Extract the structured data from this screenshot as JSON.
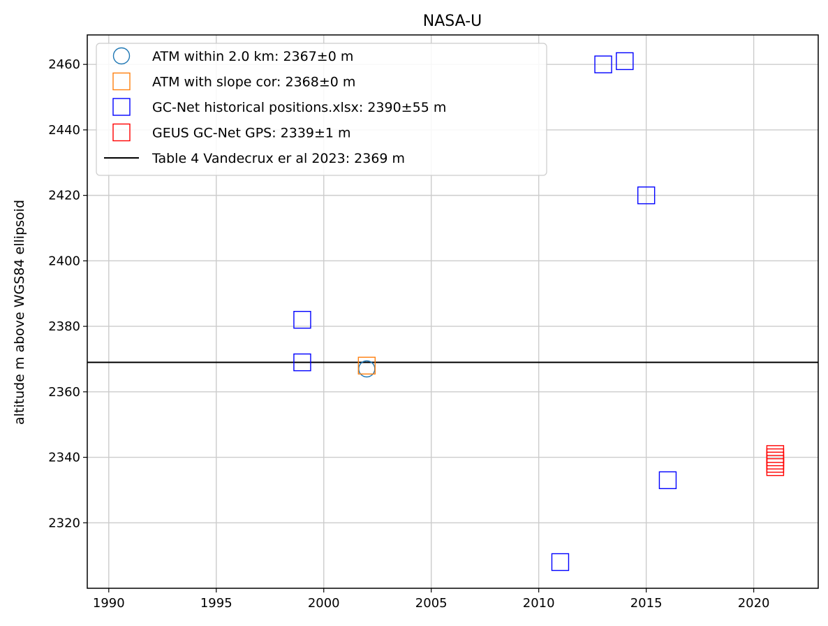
{
  "chart_data": {
    "type": "scatter",
    "title": "NASA-U",
    "xlabel": "",
    "ylabel": "altitude m above WGS84 ellipsoid",
    "xlim": [
      1989,
      2023
    ],
    "ylim": [
      2300,
      2469
    ],
    "xticks": [
      1990,
      1995,
      2000,
      2005,
      2010,
      2015,
      2020
    ],
    "yticks": [
      2320,
      2340,
      2360,
      2380,
      2400,
      2420,
      2440,
      2460
    ],
    "grid": true,
    "legend_position": "upper-left",
    "series": [
      {
        "name": "ATM within 2.0 km: 2367±0 m",
        "marker": "circle",
        "color": "#1f77b4",
        "points": [
          [
            2002,
            2367
          ]
        ]
      },
      {
        "name": "ATM with slope cor: 2368±0 m",
        "marker": "square",
        "color": "#ff7f0e",
        "points": [
          [
            2002,
            2368
          ]
        ]
      },
      {
        "name": "GC-Net historical positions.xlsx: 2390±55 m",
        "marker": "square",
        "color": "#0000ff",
        "points": [
          [
            1999,
            2382
          ],
          [
            1999,
            2369
          ],
          [
            2011,
            2308
          ],
          [
            2013,
            2460
          ],
          [
            2014,
            2461
          ],
          [
            2015,
            2420
          ],
          [
            2016,
            2333
          ]
        ]
      },
      {
        "name": "GEUS GC-Net GPS: 2339±1 m",
        "marker": "square",
        "color": "#ff0000",
        "points": [
          [
            2021,
            2337
          ],
          [
            2021,
            2338
          ],
          [
            2021,
            2339
          ],
          [
            2021,
            2340
          ],
          [
            2021,
            2341
          ]
        ]
      }
    ],
    "hlines": [
      {
        "name": "Table 4 Vandecrux er al 2023: 2369 m",
        "y": 2369,
        "color": "#000000"
      }
    ]
  }
}
